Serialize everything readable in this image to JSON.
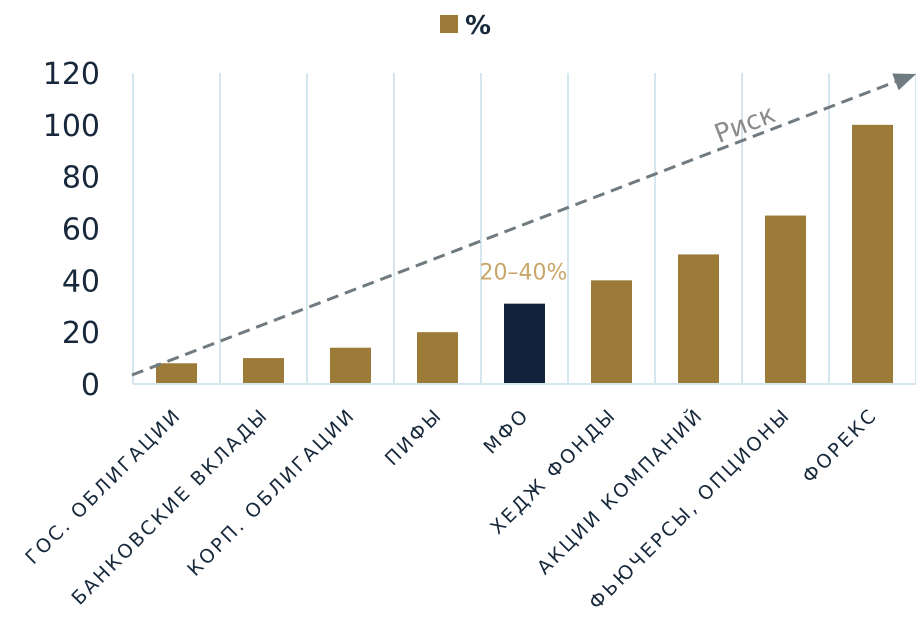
{
  "chart_data": {
    "type": "bar",
    "categories": [
      "ГОС. ОБЛИГАЦИИ",
      "БАНКОВСКИЕ ВКЛАДЫ",
      "КОРП. ОБЛИГАЦИИ",
      "ПИФЫ",
      "МФО",
      "ХЕДЖ ФОНДЫ",
      "АКЦИИ КОМПАНИЙ",
      "ФЬЮЧЕРСЫ, ОПЦИОНЫ",
      "ФОРЕКС"
    ],
    "series": [
      {
        "name": "%",
        "values": [
          8,
          10,
          14,
          20,
          31,
          40,
          50,
          65,
          100
        ]
      }
    ],
    "highlight_index": 4,
    "ylim": [
      0,
      120
    ],
    "yticks": [
      0,
      20,
      40,
      60,
      80,
      100,
      120
    ],
    "grid": "vertical",
    "legend": "top-center",
    "annotations": {
      "mfo_range": "20–40%",
      "risk_label": "Риск"
    },
    "colors": {
      "bar": "#9b7b37",
      "highlight": "#10233a",
      "grid": "#d6e6ee",
      "trend": "#6f7b80",
      "annotation": "#c9a66a"
    }
  }
}
